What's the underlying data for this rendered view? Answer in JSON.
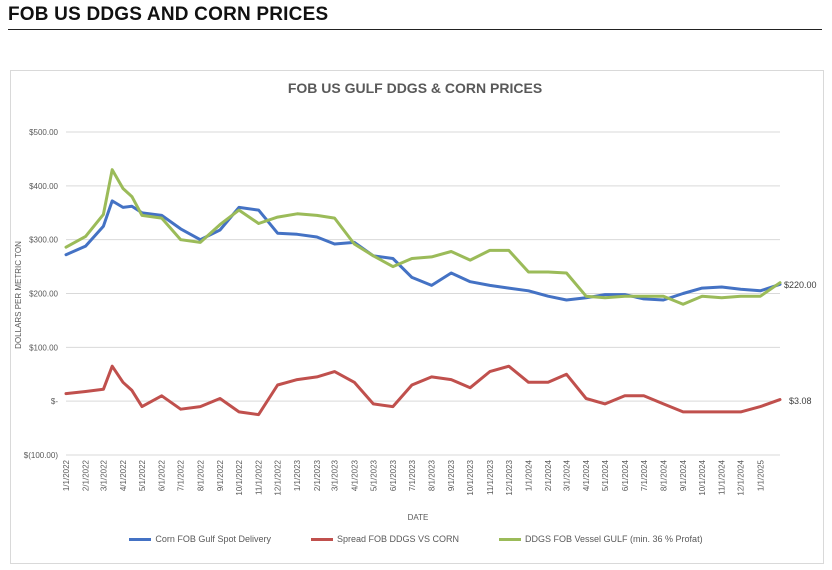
{
  "page_title": "FOB US DDGS AND CORN PRICES",
  "colors": {
    "corn": "#4472C4",
    "spread": "#C0504D",
    "ddgs": "#9BBB59",
    "grid": "#d9d9d9",
    "axis_text": "#595959"
  },
  "chart_data": {
    "type": "line",
    "title": "FOB US GULF DDGS & CORN PRICES",
    "xlabel": "DATE",
    "ylabel": "DOLLARS PER METRIC TON",
    "ylim": [
      -100,
      500
    ],
    "yticks": [
      500,
      400,
      300,
      200,
      100,
      0,
      -100
    ],
    "ytick_labels": [
      "$500.00",
      "$400.00",
      "$300.00",
      "$200.00",
      "$100.00",
      "$-",
      "$(100.00)"
    ],
    "xtick_labels": [
      "1/1/2022",
      "2/1/2022",
      "3/1/2022",
      "4/1/2022",
      "5/1/2022",
      "6/1/2022",
      "7/1/2022",
      "8/1/2022",
      "9/1/2022",
      "10/1/2022",
      "11/1/2022",
      "12/1/2022",
      "1/1/2023",
      "2/1/2023",
      "3/1/2023",
      "4/1/2023",
      "5/1/2023",
      "6/1/2023",
      "7/1/2023",
      "8/1/2023",
      "9/1/2023",
      "10/1/2023",
      "11/1/2023",
      "12/1/2023",
      "1/1/2024",
      "2/1/2024",
      "3/1/2024",
      "4/1/2024",
      "5/1/2024",
      "6/1/2024",
      "7/1/2024",
      "8/1/2024",
      "9/1/2024",
      "10/1/2024",
      "11/1/2024",
      "12/1/2024",
      "1/1/2025"
    ],
    "grid": "horizontal",
    "legend": "bottom",
    "end_labels": {
      "ddgs": "$220.00",
      "spread": "$3.08"
    },
    "x": [
      "2022-01",
      "2022-02",
      "2022-03",
      "2022-03-15",
      "2022-04",
      "2022-04-15",
      "2022-05",
      "2022-06",
      "2022-07",
      "2022-08",
      "2022-09",
      "2022-10",
      "2022-11",
      "2022-12",
      "2023-01",
      "2023-02",
      "2023-03",
      "2023-04",
      "2023-05",
      "2023-06",
      "2023-07",
      "2023-08",
      "2023-09",
      "2023-10",
      "2023-11",
      "2023-12",
      "2024-01",
      "2024-02",
      "2024-03",
      "2024-04",
      "2024-05",
      "2024-06",
      "2024-07",
      "2024-08",
      "2024-09",
      "2024-10",
      "2024-11",
      "2024-12",
      "2025-01",
      "2025-02"
    ],
    "series": [
      {
        "name": "Corn FOB Gulf Spot Delivery",
        "key": "corn",
        "values": [
          272,
          288,
          325,
          372,
          360,
          362,
          350,
          345,
          320,
          300,
          318,
          360,
          355,
          312,
          310,
          305,
          292,
          295,
          270,
          265,
          230,
          215,
          238,
          222,
          215,
          210,
          205,
          195,
          188,
          192,
          198,
          198,
          190,
          188,
          200,
          210,
          212,
          208,
          205,
          217
        ]
      },
      {
        "name": "Spread FOB DDGS VS CORN",
        "key": "spread",
        "values": [
          14,
          18,
          22,
          65,
          35,
          20,
          -10,
          10,
          -15,
          -10,
          5,
          -20,
          -25,
          30,
          40,
          45,
          55,
          35,
          -5,
          -10,
          30,
          45,
          40,
          25,
          55,
          65,
          35,
          35,
          50,
          5,
          -5,
          10,
          10,
          -5,
          -20,
          -20,
          -20,
          -20,
          -10,
          3
        ]
      },
      {
        "name": "DDGS FOB Vessel GULF  (min. 36 % Profat)",
        "key": "ddgs",
        "values": [
          286,
          306,
          347,
          430,
          395,
          380,
          345,
          340,
          300,
          295,
          328,
          355,
          330,
          342,
          348,
          345,
          340,
          292,
          270,
          250,
          265,
          268,
          278,
          262,
          280,
          280,
          240,
          240,
          238,
          195,
          192,
          195,
          195,
          195,
          180,
          195,
          192,
          195,
          195,
          220
        ]
      }
    ]
  }
}
